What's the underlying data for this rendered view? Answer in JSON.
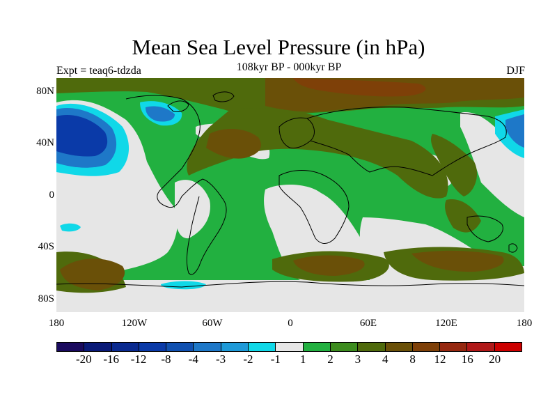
{
  "title": "Mean Sea Level Pressure (in hPa)",
  "subtitle": "108kyr BP - 000kyr BP",
  "experiment": "Expt = teaq6-tdzda",
  "season": "DJF",
  "lat_labels": [
    "80N",
    "40N",
    "0",
    "40S",
    "80S"
  ],
  "lon_labels": [
    "180",
    "120W",
    "60W",
    "0",
    "60E",
    "120E",
    "180"
  ],
  "colorbar": {
    "colors": [
      "#1a0a5e",
      "#0a1a78",
      "#0a2a90",
      "#0a3aa8",
      "#1050b0",
      "#1e78c8",
      "#1e9ad8",
      "#10d8e8",
      "#e6e6e6",
      "#22b040",
      "#3c8c1e",
      "#4f6a0c",
      "#6a5008",
      "#7e4008",
      "#962810",
      "#b01818",
      "#cc0000"
    ],
    "labels": [
      "-20",
      "-16",
      "-12",
      "-8",
      "-4",
      "-3",
      "-2",
      "-1",
      "1",
      "2",
      "3",
      "4",
      "8",
      "12",
      "16",
      "20"
    ]
  },
  "map": {
    "background": "#22b040",
    "neutral": "#e6e6e6",
    "low_light": "#10d8e8",
    "low_mid": "#1e78c8",
    "low_deep": "#0a3aa8",
    "high_olive": "#4f6a0c",
    "high_brown": "#6a5008",
    "high_rust": "#7e4008",
    "coast": "#000000"
  }
}
